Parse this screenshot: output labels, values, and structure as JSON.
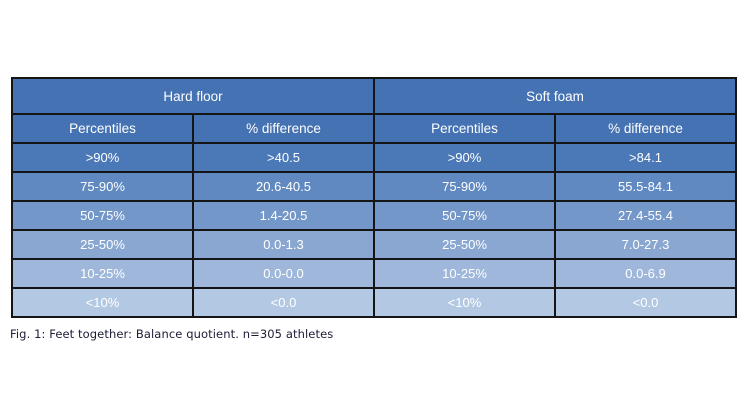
{
  "chart_data": {
    "type": "table",
    "caption": "Fig. 1: Feet together: Balance quotient. n=305 athletes",
    "n_athletes": 305,
    "sections": [
      {
        "title": "Hard floor",
        "columns": [
          "Percentiles",
          "% difference"
        ],
        "rows": [
          [
            ">90%",
            ">40.5"
          ],
          [
            "75-90%",
            "20.6-40.5"
          ],
          [
            "50-75%",
            "1.4-20.5"
          ],
          [
            "25-50%",
            "0.0-1.3"
          ],
          [
            "10-25%",
            "0.0-0.0"
          ],
          [
            "<10%",
            "<0.0"
          ]
        ]
      },
      {
        "title": "Soft foam",
        "columns": [
          "Percentiles",
          "% difference"
        ],
        "rows": [
          [
            ">90%",
            ">84.1"
          ],
          [
            "75-90%",
            "55.5-84.1"
          ],
          [
            "50-75%",
            "27.4-55.4"
          ],
          [
            "25-50%",
            "7.0-27.3"
          ],
          [
            "10-25%",
            "0.0-6.9"
          ],
          [
            "<10%",
            "<0.0"
          ]
        ]
      }
    ],
    "layout_hints": {
      "grid": true,
      "row_shading": "header darkest blue, data rows lighten toward bottom",
      "text_color": "white",
      "caption_position": "below table, left aligned"
    }
  },
  "colors": {
    "header_bg": "#4472b2",
    "row_bg": [
      "#4b78b6",
      "#6089c1",
      "#7497c9",
      "#89a7d1",
      "#9eb7da",
      "#b3c8e2"
    ],
    "cell_text": "#ffffff",
    "border": "#151515",
    "caption_text": "#1c1c34",
    "page_bg": "#ffffff"
  }
}
